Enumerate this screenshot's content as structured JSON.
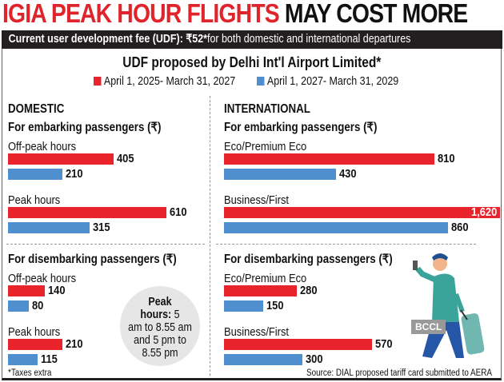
{
  "title_red": "IGIA PEAK HOUR FLIGHTS",
  "title_black": "MAY COST MORE",
  "band_bold": "Current user development fee (UDF): ₹52*",
  "band_rest": " for both domestic and international departures",
  "colors": {
    "series1": "#e8232b",
    "series2": "#4f8fd0",
    "band": "#231f20",
    "circle": "#e6e6e6"
  },
  "chart_data": {
    "type": "bar",
    "orientation": "horizontal",
    "title": "UDF proposed by Delhi Int'l Airport Limited*",
    "legend": [
      "April 1, 2025- March 31, 2027",
      "April 1, 2027- March 31, 2029"
    ],
    "legend_placement": "top",
    "unit": "₹",
    "panels": [
      {
        "section": "DOMESTIC",
        "group": "For embarking passengers (₹)",
        "categories": [
          "Off-peak hours",
          "Peak hours"
        ],
        "series": [
          {
            "name": "April 1, 2025- March 31, 2027",
            "values": [
              405,
              610
            ]
          },
          {
            "name": "April 1, 2027- March 31, 2029",
            "values": [
              210,
              315
            ]
          }
        ]
      },
      {
        "section": "DOMESTIC",
        "group": "For disembarking passengers (₹)",
        "categories": [
          "Off-peak hours",
          "Peak hours"
        ],
        "series": [
          {
            "name": "April 1, 2025- March 31, 2027",
            "values": [
              140,
              210
            ]
          },
          {
            "name": "April 1, 2027- March 31, 2029",
            "values": [
              80,
              115
            ]
          }
        ]
      },
      {
        "section": "INTERNATIONAL",
        "group": "For embarking passengers (₹)",
        "categories": [
          "Eco/Premium Eco",
          "Business/First"
        ],
        "series": [
          {
            "name": "April 1, 2025- March 31, 2027",
            "values": [
              810,
              1620
            ]
          },
          {
            "name": "April 1, 2027- March 31, 2029",
            "values": [
              430,
              860
            ]
          }
        ]
      },
      {
        "section": "INTERNATIONAL",
        "group": "For disembarking passengers (₹)",
        "categories": [
          "Eco/Premium Eco",
          "Business/First"
        ],
        "series": [
          {
            "name": "April 1, 2025- March 31, 2027",
            "values": [
              280,
              570
            ]
          },
          {
            "name": "April 1, 2027- March 31, 2029",
            "values": [
              150,
              300
            ]
          }
        ]
      }
    ],
    "labels": {
      "1620": "1,620"
    }
  },
  "circle": {
    "l1": "Peak",
    "l2a": "hours:",
    "l2b": " 5",
    "l3": "am to 8.55 am",
    "l4": "and 5 pm to",
    "l5": "8.55 pm"
  },
  "footnote": "*Taxes extra",
  "source": "Source: DIAL proposed tariff card submitted to AERA",
  "watermark": "BCCL"
}
